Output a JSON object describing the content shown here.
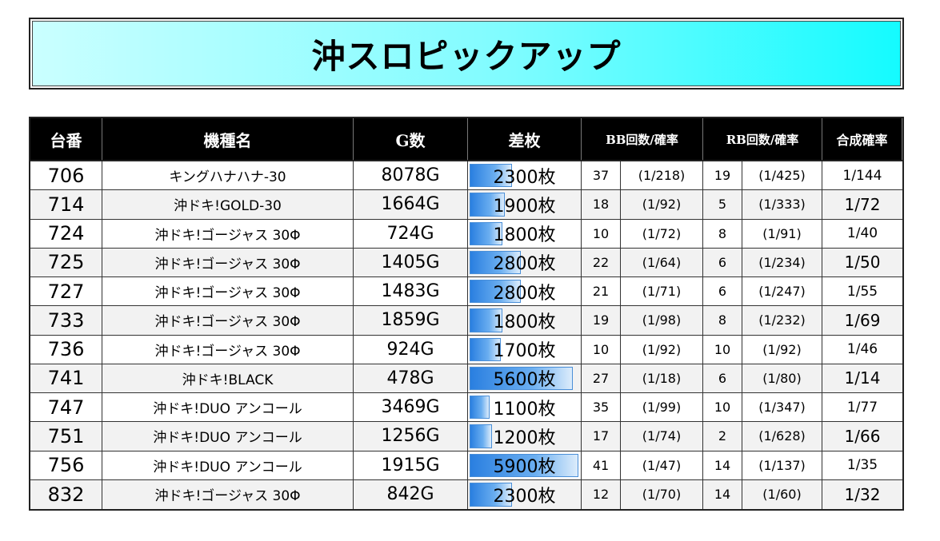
{
  "title": "沖スロピックアップ",
  "headers": {
    "no": "台番",
    "name": "機種名",
    "games": "G数",
    "diff": "差枚",
    "bb": "BB回数/確率",
    "rb": "RB回数/確率",
    "synth": "合成確率"
  },
  "rows": [
    {
      "no": "706",
      "name": "キングハナハナ-30",
      "games": "8078G",
      "diff": "2300枚",
      "diff_value": 2300,
      "bb_count": "37",
      "bb_rate": "(1/218)",
      "rb_count": "19",
      "rb_rate": "(1/425)",
      "synth": "1/144"
    },
    {
      "no": "714",
      "name": "沖ドキ!GOLD-30",
      "games": "1664G",
      "diff": "1900枚",
      "diff_value": 1900,
      "bb_count": "18",
      "bb_rate": "(1/92)",
      "rb_count": "5",
      "rb_rate": "(1/333)",
      "synth": "1/72"
    },
    {
      "no": "724",
      "name": "沖ドキ!ゴージャス 30Φ",
      "games": "724G",
      "diff": "1800枚",
      "diff_value": 1800,
      "bb_count": "10",
      "bb_rate": "(1/72)",
      "rb_count": "8",
      "rb_rate": "(1/91)",
      "synth": "1/40"
    },
    {
      "no": "725",
      "name": "沖ドキ!ゴージャス 30Φ",
      "games": "1405G",
      "diff": "2800枚",
      "diff_value": 2800,
      "bb_count": "22",
      "bb_rate": "(1/64)",
      "rb_count": "6",
      "rb_rate": "(1/234)",
      "synth": "1/50"
    },
    {
      "no": "727",
      "name": "沖ドキ!ゴージャス 30Φ",
      "games": "1483G",
      "diff": "2800枚",
      "diff_value": 2800,
      "bb_count": "21",
      "bb_rate": "(1/71)",
      "rb_count": "6",
      "rb_rate": "(1/247)",
      "synth": "1/55"
    },
    {
      "no": "733",
      "name": "沖ドキ!ゴージャス 30Φ",
      "games": "1859G",
      "diff": "1800枚",
      "diff_value": 1800,
      "bb_count": "19",
      "bb_rate": "(1/98)",
      "rb_count": "8",
      "rb_rate": "(1/232)",
      "synth": "1/69"
    },
    {
      "no": "736",
      "name": "沖ドキ!ゴージャス 30Φ",
      "games": "924G",
      "diff": "1700枚",
      "diff_value": 1700,
      "bb_count": "10",
      "bb_rate": "(1/92)",
      "rb_count": "10",
      "rb_rate": "(1/92)",
      "synth": "1/46"
    },
    {
      "no": "741",
      "name": "沖ドキ!BLACK",
      "games": "478G",
      "diff": "5600枚",
      "diff_value": 5600,
      "bb_count": "27",
      "bb_rate": "(1/18)",
      "rb_count": "6",
      "rb_rate": "(1/80)",
      "synth": "1/14"
    },
    {
      "no": "747",
      "name": "沖ドキ!DUO アンコール",
      "games": "3469G",
      "diff": "1100枚",
      "diff_value": 1100,
      "bb_count": "35",
      "bb_rate": "(1/99)",
      "rb_count": "10",
      "rb_rate": "(1/347)",
      "synth": "1/77"
    },
    {
      "no": "751",
      "name": "沖ドキ!DUO アンコール",
      "games": "1256G",
      "diff": "1200枚",
      "diff_value": 1200,
      "bb_count": "17",
      "bb_rate": "(1/74)",
      "rb_count": "2",
      "rb_rate": "(1/628)",
      "synth": "1/66"
    },
    {
      "no": "756",
      "name": "沖ドキ!DUO アンコール",
      "games": "1915G",
      "diff": "5900枚",
      "diff_value": 5900,
      "bb_count": "41",
      "bb_rate": "(1/47)",
      "rb_count": "14",
      "rb_rate": "(1/137)",
      "synth": "1/35"
    },
    {
      "no": "832",
      "name": "沖ドキ!ゴージャス 30Φ",
      "games": "842G",
      "diff": "2300枚",
      "diff_value": 2300,
      "bb_count": "12",
      "bb_rate": "(1/70)",
      "rb_count": "14",
      "rb_rate": "(1/60)",
      "synth": "1/32"
    }
  ],
  "colors": {
    "header_bg": "#000000",
    "header_text": "#ffffff",
    "title_gradient_start": "#caffff",
    "title_gradient_end": "#14fbff",
    "bar_color": "#2a7fe0"
  }
}
